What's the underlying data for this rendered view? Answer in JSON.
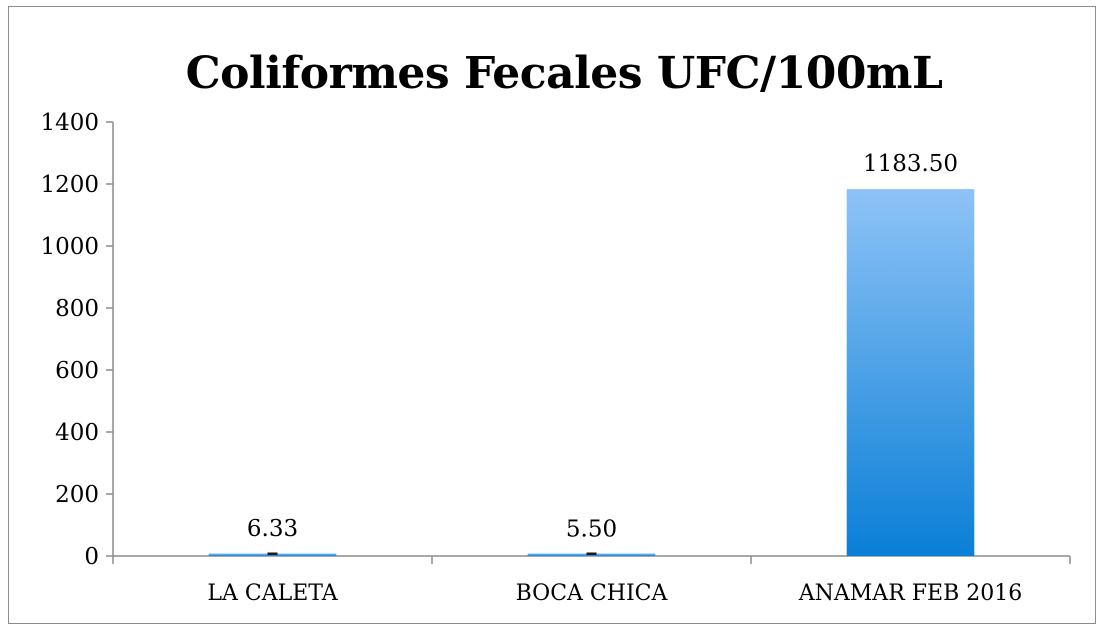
{
  "chart_data": {
    "type": "bar",
    "title": "Coliformes Fecales UFC/100mL",
    "categories": [
      "LA CALETA",
      "BOCA CHICA",
      "ANAMAR FEB 2016"
    ],
    "values": [
      6.33,
      5.5,
      1183.5
    ],
    "data_labels": [
      "6.33",
      "5.50",
      "1183.50"
    ],
    "ylim": [
      0,
      1400
    ],
    "yticks": [
      0,
      200,
      400,
      600,
      800,
      1000,
      1200,
      1400
    ],
    "grid": false,
    "legend": "none",
    "colors": {
      "bar_top": "#8ec3f7",
      "bar_bottom": "#0a7fd6",
      "axis": "#8c8c8c"
    }
  }
}
